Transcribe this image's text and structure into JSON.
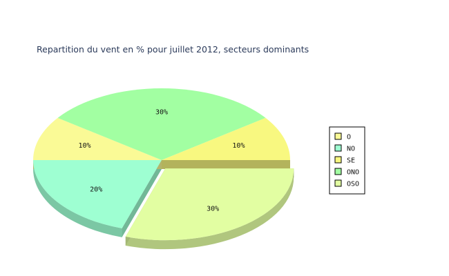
{
  "chart_data": {
    "type": "pie",
    "title": "Repartition du vent en % pour juillet 2012, secteurs dominants",
    "slices": [
      {
        "name": "O",
        "value": 10,
        "label": "10%",
        "color": "#fafa96"
      },
      {
        "name": "NO",
        "value": 20,
        "label": "20%",
        "color": "#9effd2"
      },
      {
        "name": "SE",
        "value": 10,
        "label": "10%",
        "color": "#f8f880"
      },
      {
        "name": "ONO",
        "value": 30,
        "label": "30%",
        "color": "#a2ffa2"
      },
      {
        "name": "OSO",
        "value": 30,
        "label": "30%",
        "color": "#e2fea2",
        "exploded": true
      }
    ],
    "legend": {
      "position": "right",
      "items": [
        "O",
        "NO",
        "SE",
        "ONO",
        "OSO"
      ]
    },
    "style": "3d"
  }
}
